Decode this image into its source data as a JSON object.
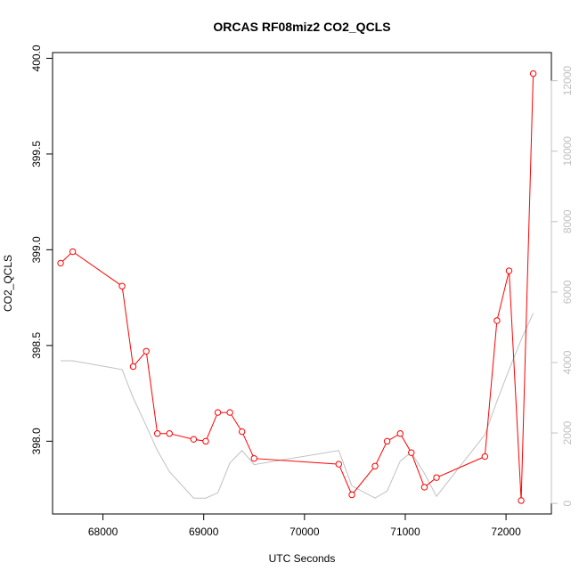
{
  "chart_data": {
    "type": "line",
    "title": "ORCAS RF08miz2 CO2_QCLS",
    "xlabel": "UTC Seconds",
    "ylabel": "CO2_QCLS",
    "xlim": [
      67500,
      72450
    ],
    "ylim": [
      397.62,
      400.03
    ],
    "y2lim": [
      -300,
      12800
    ],
    "x_ticks": [
      68000,
      69000,
      70000,
      71000,
      72000
    ],
    "y_ticks": [
      398.0,
      398.5,
      399.0,
      399.5,
      400.0
    ],
    "y2_ticks": [
      0,
      2000,
      4000,
      6000,
      8000,
      10000,
      12000
    ],
    "grid": false,
    "colors": {
      "primary": "#ff0000",
      "secondary": "#c0c0c0"
    },
    "series": [
      {
        "axis": "left",
        "style": "line+markers",
        "x": [
          67580,
          67700,
          68190,
          68300,
          68430,
          68540,
          68660,
          68900,
          69020,
          69140,
          69260,
          69380,
          69500,
          70340,
          70470,
          70700,
          70820,
          70950,
          71060,
          71190,
          71310,
          71790,
          71910,
          72030,
          72150,
          72270
        ],
        "y": [
          398.93,
          398.99,
          398.81,
          398.39,
          398.47,
          398.04,
          398.04,
          398.01,
          398.0,
          398.15,
          398.15,
          398.05,
          397.91,
          397.88,
          397.72,
          397.87,
          398.0,
          398.04,
          397.94,
          397.76,
          397.81,
          397.92,
          398.63,
          398.89,
          397.69,
          399.92
        ]
      },
      {
        "axis": "right",
        "style": "line",
        "x": [
          67580,
          67700,
          68190,
          68300,
          68430,
          68540,
          68660,
          68900,
          69020,
          69140,
          69260,
          69380,
          69500,
          70340,
          70470,
          70700,
          70820,
          70950,
          71060,
          71190,
          71310,
          71790,
          71910,
          72030,
          72150,
          72270
        ],
        "y": [
          4050,
          4050,
          3800,
          3000,
          2200,
          1500,
          900,
          150,
          150,
          300,
          1150,
          1500,
          1100,
          1500,
          500,
          150,
          350,
          1200,
          1450,
          850,
          200,
          1950,
          2900,
          3800,
          4650,
          5400
        ]
      }
    ]
  }
}
